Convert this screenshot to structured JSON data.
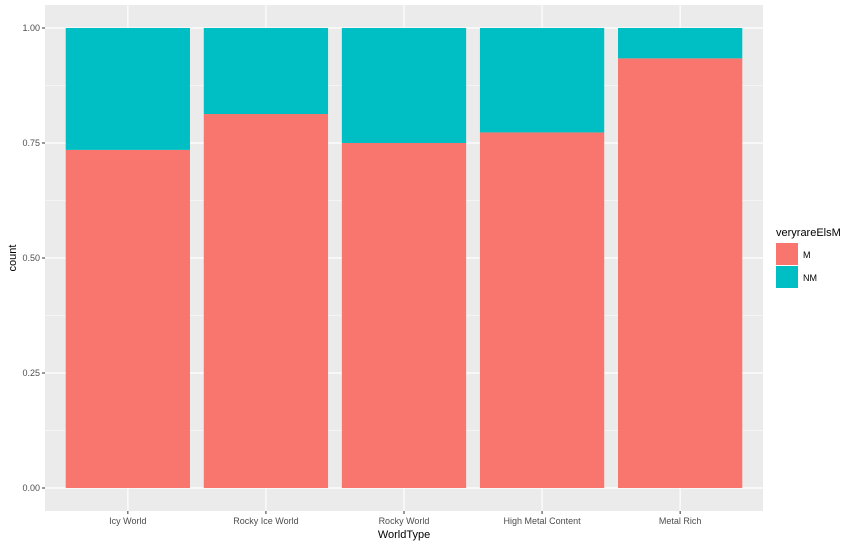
{
  "chart_data": {
    "type": "bar",
    "stacked": true,
    "xlabel": "WorldType",
    "ylabel": "count",
    "categories": [
      "Icy World",
      "Rocky Ice World",
      "Rocky World",
      "High Metal Content",
      "Metal Rich"
    ],
    "series": [
      {
        "name": "M",
        "values": [
          0.735,
          0.813,
          0.75,
          0.773,
          0.934
        ]
      },
      {
        "name": "NM",
        "values": [
          0.265,
          0.187,
          0.25,
          0.227,
          0.066
        ]
      }
    ],
    "ylim": [
      0,
      1.0
    ],
    "yticks": [
      0.0,
      0.25,
      0.5,
      0.75,
      1.0
    ],
    "ytick_labels": [
      "0.00",
      "0.25",
      "0.50",
      "0.75",
      "1.00"
    ],
    "legend": {
      "title": "veryrareElsM",
      "position": "right"
    },
    "grid": true,
    "colors": {
      "M": "#F8766D",
      "NM": "#00BFC4",
      "panel": "#EBEBEB",
      "grid": "#FFFFFF"
    }
  }
}
